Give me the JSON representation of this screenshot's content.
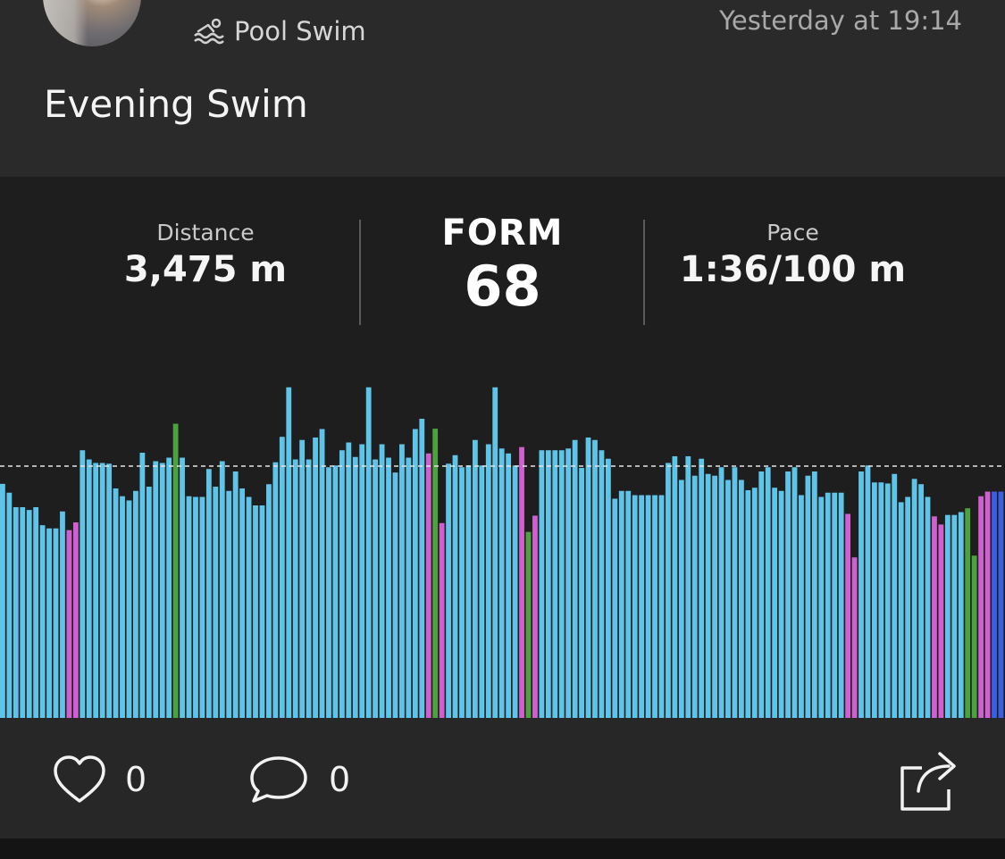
{
  "header": {
    "activity_type": "Pool Swim",
    "activity_icon": "swimmer-icon",
    "timestamp": "Yesterday at 19:14",
    "title": "Evening Swim"
  },
  "stats": {
    "distance_label": "Distance",
    "distance_value": "3,475 m",
    "form_label": "FORM",
    "form_value": "68",
    "pace_label": "Pace",
    "pace_value": "1:36/100 m"
  },
  "colors": {
    "freestyle": "#5ec4e8",
    "backstroke": "#d05fd0",
    "breaststroke": "#4ca23e",
    "other": "#3b5fe0",
    "background": "#1e1e1e"
  },
  "chart_data": {
    "type": "bar",
    "reference_line": 0.712,
    "ylim": [
      0,
      1
    ],
    "grid": false,
    "bars": [
      {
        "v": 0.662,
        "c": "f"
      },
      {
        "v": 0.637,
        "c": "f"
      },
      {
        "v": 0.596,
        "c": "f"
      },
      {
        "v": 0.596,
        "c": "f"
      },
      {
        "v": 0.588,
        "c": "f"
      },
      {
        "v": 0.596,
        "c": "f"
      },
      {
        "v": 0.545,
        "c": "f"
      },
      {
        "v": 0.536,
        "c": "f"
      },
      {
        "v": 0.536,
        "c": "f"
      },
      {
        "v": 0.584,
        "c": "f"
      },
      {
        "v": 0.531,
        "c": "b"
      },
      {
        "v": 0.553,
        "c": "b"
      },
      {
        "v": 0.757,
        "c": "f"
      },
      {
        "v": 0.731,
        "c": "f"
      },
      {
        "v": 0.721,
        "c": "f"
      },
      {
        "v": 0.721,
        "c": "f"
      },
      {
        "v": 0.719,
        "c": "f"
      },
      {
        "v": 0.649,
        "c": "f"
      },
      {
        "v": 0.627,
        "c": "f"
      },
      {
        "v": 0.615,
        "c": "f"
      },
      {
        "v": 0.642,
        "c": "f"
      },
      {
        "v": 0.75,
        "c": "f"
      },
      {
        "v": 0.654,
        "c": "f"
      },
      {
        "v": 0.726,
        "c": "f"
      },
      {
        "v": 0.721,
        "c": "f"
      },
      {
        "v": 0.736,
        "c": "f"
      },
      {
        "v": 0.832,
        "c": "g"
      },
      {
        "v": 0.736,
        "c": "f"
      },
      {
        "v": 0.627,
        "c": "f"
      },
      {
        "v": 0.625,
        "c": "f"
      },
      {
        "v": 0.625,
        "c": "f"
      },
      {
        "v": 0.704,
        "c": "f"
      },
      {
        "v": 0.654,
        "c": "f"
      },
      {
        "v": 0.726,
        "c": "f"
      },
      {
        "v": 0.642,
        "c": "f"
      },
      {
        "v": 0.697,
        "c": "f"
      },
      {
        "v": 0.649,
        "c": "f"
      },
      {
        "v": 0.625,
        "c": "f"
      },
      {
        "v": 0.601,
        "c": "f"
      },
      {
        "v": 0.601,
        "c": "f"
      },
      {
        "v": 0.661,
        "c": "f"
      },
      {
        "v": 0.723,
        "c": "f"
      },
      {
        "v": 0.795,
        "c": "f"
      },
      {
        "v": 0.935,
        "c": "f"
      },
      {
        "v": 0.731,
        "c": "f"
      },
      {
        "v": 0.786,
        "c": "f"
      },
      {
        "v": 0.731,
        "c": "f"
      },
      {
        "v": 0.793,
        "c": "f"
      },
      {
        "v": 0.817,
        "c": "f"
      },
      {
        "v": 0.709,
        "c": "f"
      },
      {
        "v": 0.714,
        "c": "f"
      },
      {
        "v": 0.757,
        "c": "f"
      },
      {
        "v": 0.779,
        "c": "f"
      },
      {
        "v": 0.738,
        "c": "f"
      },
      {
        "v": 0.774,
        "c": "f"
      },
      {
        "v": 0.935,
        "c": "f"
      },
      {
        "v": 0.731,
        "c": "f"
      },
      {
        "v": 0.774,
        "c": "f"
      },
      {
        "v": 0.736,
        "c": "f"
      },
      {
        "v": 0.694,
        "c": "f"
      },
      {
        "v": 0.774,
        "c": "f"
      },
      {
        "v": 0.736,
        "c": "f"
      },
      {
        "v": 0.817,
        "c": "f"
      },
      {
        "v": 0.846,
        "c": "f"
      },
      {
        "v": 0.748,
        "c": "b"
      },
      {
        "v": 0.818,
        "c": "g"
      },
      {
        "v": 0.551,
        "c": "b"
      },
      {
        "v": 0.719,
        "c": "f"
      },
      {
        "v": 0.743,
        "c": "f"
      },
      {
        "v": 0.709,
        "c": "f"
      },
      {
        "v": 0.714,
        "c": "f"
      },
      {
        "v": 0.786,
        "c": "f"
      },
      {
        "v": 0.714,
        "c": "f"
      },
      {
        "v": 0.774,
        "c": "f"
      },
      {
        "v": 0.935,
        "c": "f"
      },
      {
        "v": 0.762,
        "c": "f"
      },
      {
        "v": 0.748,
        "c": "f"
      },
      {
        "v": 0.714,
        "c": "f"
      },
      {
        "v": 0.766,
        "c": "b"
      },
      {
        "v": 0.526,
        "c": "g"
      },
      {
        "v": 0.572,
        "c": "b"
      },
      {
        "v": 0.757,
        "c": "f"
      },
      {
        "v": 0.757,
        "c": "f"
      },
      {
        "v": 0.757,
        "c": "f"
      },
      {
        "v": 0.757,
        "c": "f"
      },
      {
        "v": 0.762,
        "c": "f"
      },
      {
        "v": 0.786,
        "c": "f"
      },
      {
        "v": 0.707,
        "c": "f"
      },
      {
        "v": 0.793,
        "c": "f"
      },
      {
        "v": 0.786,
        "c": "f"
      },
      {
        "v": 0.757,
        "c": "f"
      },
      {
        "v": 0.733,
        "c": "f"
      },
      {
        "v": 0.62,
        "c": "f"
      },
      {
        "v": 0.642,
        "c": "f"
      },
      {
        "v": 0.642,
        "c": "f"
      },
      {
        "v": 0.63,
        "c": "f"
      },
      {
        "v": 0.63,
        "c": "f"
      },
      {
        "v": 0.63,
        "c": "f"
      },
      {
        "v": 0.63,
        "c": "f"
      },
      {
        "v": 0.63,
        "c": "f"
      },
      {
        "v": 0.721,
        "c": "f"
      },
      {
        "v": 0.74,
        "c": "f"
      },
      {
        "v": 0.673,
        "c": "f"
      },
      {
        "v": 0.74,
        "c": "f"
      },
      {
        "v": 0.685,
        "c": "f"
      },
      {
        "v": 0.733,
        "c": "f"
      },
      {
        "v": 0.69,
        "c": "f"
      },
      {
        "v": 0.685,
        "c": "f"
      },
      {
        "v": 0.709,
        "c": "f"
      },
      {
        "v": 0.673,
        "c": "f"
      },
      {
        "v": 0.709,
        "c": "f"
      },
      {
        "v": 0.673,
        "c": "f"
      },
      {
        "v": 0.644,
        "c": "f"
      },
      {
        "v": 0.651,
        "c": "f"
      },
      {
        "v": 0.697,
        "c": "f"
      },
      {
        "v": 0.709,
        "c": "f"
      },
      {
        "v": 0.651,
        "c": "f"
      },
      {
        "v": 0.642,
        "c": "f"
      },
      {
        "v": 0.697,
        "c": "f"
      },
      {
        "v": 0.709,
        "c": "f"
      },
      {
        "v": 0.63,
        "c": "f"
      },
      {
        "v": 0.685,
        "c": "f"
      },
      {
        "v": 0.697,
        "c": "f"
      },
      {
        "v": 0.625,
        "c": "f"
      },
      {
        "v": 0.637,
        "c": "f"
      },
      {
        "v": 0.637,
        "c": "f"
      },
      {
        "v": 0.637,
        "c": "f"
      },
      {
        "v": 0.577,
        "c": "b"
      },
      {
        "v": 0.454,
        "c": "b"
      },
      {
        "v": 0.697,
        "c": "f"
      },
      {
        "v": 0.714,
        "c": "f"
      },
      {
        "v": 0.666,
        "c": "f"
      },
      {
        "v": 0.666,
        "c": "f"
      },
      {
        "v": 0.663,
        "c": "f"
      },
      {
        "v": 0.69,
        "c": "f"
      },
      {
        "v": 0.61,
        "c": "f"
      },
      {
        "v": 0.625,
        "c": "f"
      },
      {
        "v": 0.676,
        "c": "f"
      },
      {
        "v": 0.661,
        "c": "f"
      },
      {
        "v": 0.625,
        "c": "f"
      },
      {
        "v": 0.57,
        "c": "b"
      },
      {
        "v": 0.547,
        "c": "b"
      },
      {
        "v": 0.574,
        "c": "f"
      },
      {
        "v": 0.574,
        "c": "f"
      },
      {
        "v": 0.582,
        "c": "f"
      },
      {
        "v": 0.593,
        "c": "g"
      },
      {
        "v": 0.459,
        "c": "g"
      },
      {
        "v": 0.627,
        "c": "b"
      },
      {
        "v": 0.64,
        "c": "b"
      },
      {
        "v": 0.64,
        "c": "o"
      },
      {
        "v": 0.64,
        "c": "o"
      }
    ]
  },
  "footer": {
    "like_count": "0",
    "comment_count": "0"
  }
}
